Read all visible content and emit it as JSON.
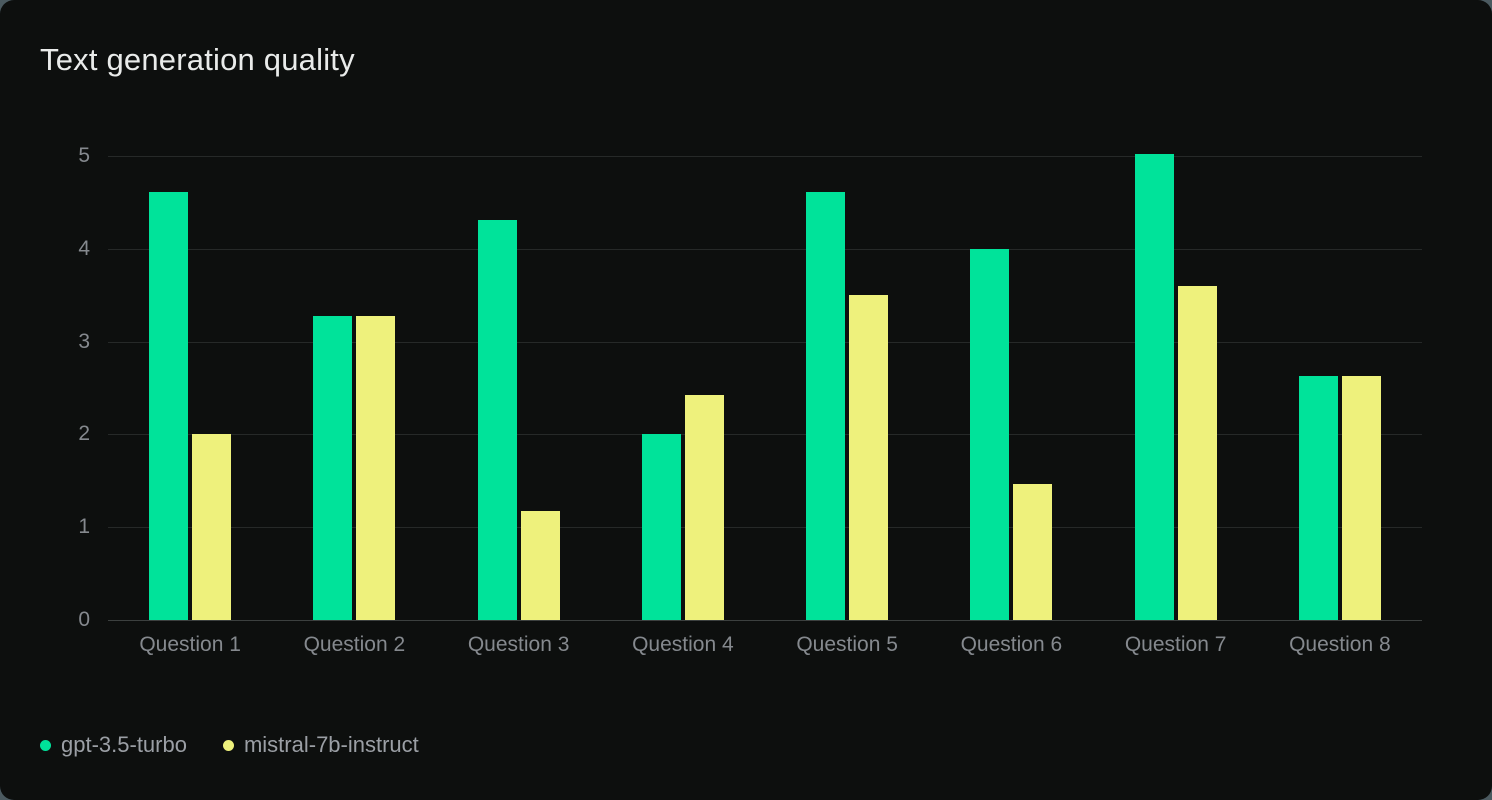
{
  "title": "Text generation quality",
  "colors": {
    "page_bg": "#4b5a60",
    "card_bg": "#0d0f0e",
    "grid": "#262928",
    "baseline": "#3c403f",
    "axis_text": "#85898e",
    "title_text": "#e9ebea",
    "legend_text": "#9b9fa5"
  },
  "chart_data": {
    "type": "bar",
    "title": "Text generation quality",
    "categories": [
      "Question 1",
      "Question 2",
      "Question 3",
      "Question 4",
      "Question 5",
      "Question 6",
      "Question 7",
      "Question 8"
    ],
    "series": [
      {
        "name": "gpt-3.5-turbo",
        "color": "#00e39a",
        "values": [
          4.61,
          3.28,
          4.31,
          2.0,
          4.61,
          4.0,
          5.02,
          2.63
        ]
      },
      {
        "name": "mistral-7b-instruct",
        "color": "#eef17c",
        "values": [
          2.0,
          3.28,
          1.17,
          2.43,
          3.5,
          1.47,
          3.6,
          2.63
        ]
      }
    ],
    "ylabel": "",
    "xlabel": "",
    "ylim": [
      0,
      5
    ],
    "yticks": [
      0,
      1,
      2,
      3,
      4,
      5
    ],
    "grid": true,
    "legend_position": "bottom-left"
  }
}
